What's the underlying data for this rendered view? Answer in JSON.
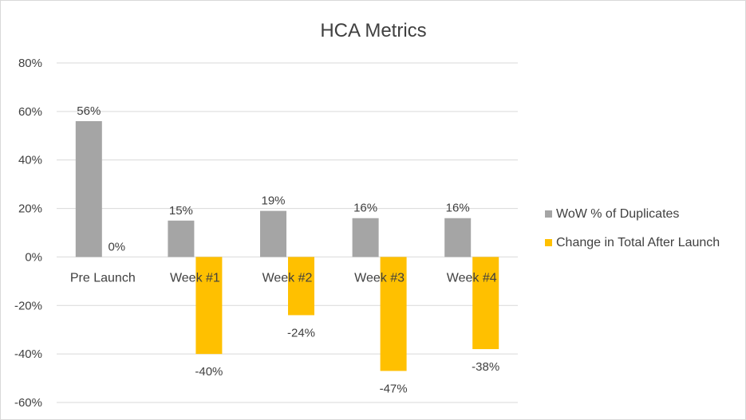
{
  "chart_data": {
    "type": "bar",
    "title": "HCA Metrics",
    "categories": [
      "Pre Launch",
      "Week #1",
      "Week #2",
      "Week #3",
      "Week #4"
    ],
    "series": [
      {
        "name": "WoW % of Duplicates",
        "color": "#a5a5a5",
        "values": [
          56,
          15,
          19,
          16,
          16
        ],
        "labels": [
          "56%",
          "15%",
          "19%",
          "16%",
          "16%"
        ]
      },
      {
        "name": "Change in Total After Launch",
        "color": "#ffc000",
        "values": [
          0,
          -40,
          -24,
          -47,
          -38
        ],
        "labels": [
          "0%",
          "-40%",
          "-24%",
          "-47%",
          "-38%"
        ]
      }
    ],
    "ylim": [
      -60,
      80
    ],
    "yticks": [
      80,
      60,
      40,
      20,
      0,
      -20,
      -40,
      -60
    ],
    "ytick_labels": [
      "80%",
      "60%",
      "40%",
      "20%",
      "0%",
      "-20%",
      "-40%",
      "-60%"
    ],
    "grid": true,
    "legend": "right"
  }
}
